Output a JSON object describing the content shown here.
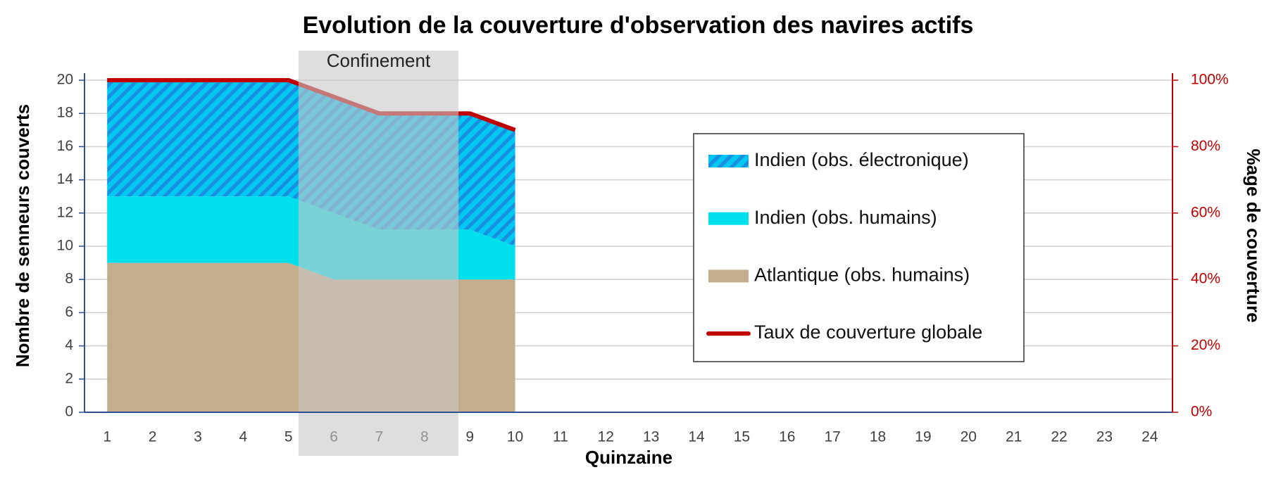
{
  "chart_data": {
    "type": "stacked_area_line",
    "title": "Evolution de la couverture d'observation des navires actifs",
    "x_label": "Quinzaine",
    "y_label": "Nombre de senneurs couverts",
    "y2_label": "%age de couverture",
    "annotation": "Confinement",
    "categories": [
      "1",
      "2",
      "3",
      "4",
      "5",
      "6",
      "7",
      "8",
      "9",
      "10",
      "11",
      "12",
      "13",
      "14",
      "15",
      "16",
      "17",
      "18",
      "19",
      "20",
      "21",
      "22",
      "23",
      "24"
    ],
    "series": [
      {
        "name": "Atlantique (obs. humains)",
        "color": "#c4ad8c",
        "kind": "area",
        "values": [
          9,
          9,
          9,
          9,
          9,
          8,
          8,
          8,
          8,
          8,
          null,
          null,
          null,
          null,
          null,
          null,
          null,
          null,
          null,
          null,
          null,
          null,
          null,
          null
        ]
      },
      {
        "name": "Indien (obs. humains)",
        "color": "#00e0ec",
        "kind": "area",
        "values": [
          4,
          4,
          4,
          4,
          4,
          4,
          3,
          3,
          3,
          2,
          null,
          null,
          null,
          null,
          null,
          null,
          null,
          null,
          null,
          null,
          null,
          null,
          null,
          null
        ]
      },
      {
        "name": "Indien (obs. électronique)",
        "color": "#00c8f0",
        "kind": "hatched-area",
        "values": [
          7,
          7,
          7,
          7,
          7,
          7,
          7,
          7,
          7,
          7,
          null,
          null,
          null,
          null,
          null,
          null,
          null,
          null,
          null,
          null,
          null,
          null,
          null,
          null
        ]
      },
      {
        "name": "Taux de couverture globale",
        "color": "#c00000",
        "kind": "line",
        "axis": "y2",
        "values": [
          100,
          100,
          100,
          100,
          100,
          95,
          90,
          90,
          90,
          85,
          null,
          null,
          null,
          null,
          null,
          null,
          null,
          null,
          null,
          null,
          null,
          null,
          null,
          null
        ]
      }
    ],
    "ylim": [
      0,
      20
    ],
    "yticks": [
      0,
      2,
      4,
      6,
      8,
      10,
      12,
      14,
      16,
      18,
      20
    ],
    "y2lim": [
      0,
      100
    ],
    "y2ticks": [
      {
        "value": 0,
        "label": "0%"
      },
      {
        "value": 20,
        "label": "20%"
      },
      {
        "value": 40,
        "label": "40%"
      },
      {
        "value": 60,
        "label": "60%"
      },
      {
        "value": 80,
        "label": "80%"
      },
      {
        "value": 100,
        "label": "100%"
      }
    ],
    "grid": true
  }
}
